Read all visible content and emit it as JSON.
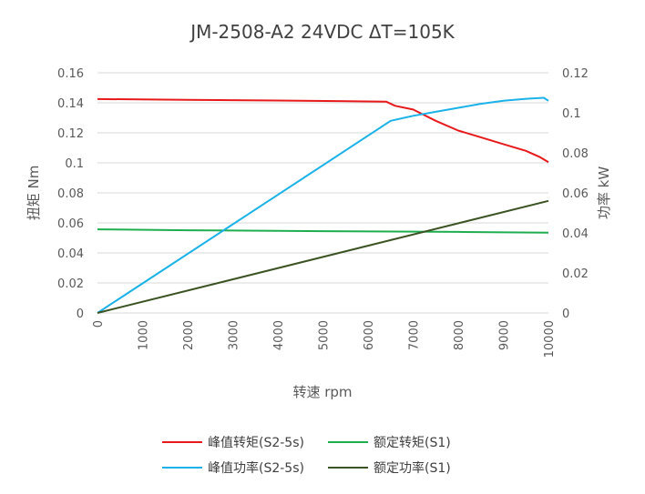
{
  "chart_data": {
    "type": "line",
    "title": "JM-2508-A2 24VDC ΔT=105K",
    "xlabel": "转速 rpm",
    "ylabel_left": "扭矩 Nm",
    "ylabel_right": "功率 kW",
    "xlim": [
      0,
      10000
    ],
    "ylim_left": [
      0,
      0.16
    ],
    "ylim_right": [
      0,
      0.12
    ],
    "x_ticks": [
      0,
      1000,
      2000,
      3000,
      4000,
      5000,
      6000,
      7000,
      8000,
      9000,
      10000
    ],
    "y_left_ticks": [
      "0",
      "0.02",
      "0.04",
      "0.06",
      "0.08",
      "0.1",
      "0.12",
      "0.14",
      "0.16"
    ],
    "y_right_ticks": [
      "0",
      "0.02",
      "0.04",
      "0.06",
      "0.08",
      "0.1",
      "0.12"
    ],
    "grid": true,
    "legend_position": "bottom",
    "series": [
      {
        "name": "峰值转矩(S2-5s)",
        "axis": "left",
        "color": "#e8191b",
        "points": [
          [
            0,
            0.1425
          ],
          [
            2000,
            0.142
          ],
          [
            4000,
            0.1415
          ],
          [
            6400,
            0.1408
          ],
          [
            6600,
            0.138
          ],
          [
            7000,
            0.1355
          ],
          [
            7500,
            0.128
          ],
          [
            8000,
            0.1215
          ],
          [
            8500,
            0.117
          ],
          [
            9000,
            0.1125
          ],
          [
            9500,
            0.108
          ],
          [
            9800,
            0.104
          ],
          [
            10000,
            0.1005
          ]
        ]
      },
      {
        "name": "额定转矩(S1)",
        "axis": "left",
        "color": "#1fae4f",
        "points": [
          [
            0,
            0.0557
          ],
          [
            2000,
            0.0551
          ],
          [
            5000,
            0.0545
          ],
          [
            8000,
            0.054
          ],
          [
            10000,
            0.0535
          ]
        ]
      },
      {
        "name": "峰值功率(S2-5s)",
        "axis": "right",
        "color": "#1ab2e8",
        "points": [
          [
            0,
            0
          ],
          [
            6500,
            0.096
          ],
          [
            7000,
            0.0985
          ],
          [
            7500,
            0.1005
          ],
          [
            8000,
            0.1025
          ],
          [
            8500,
            0.1045
          ],
          [
            9000,
            0.106
          ],
          [
            9500,
            0.107
          ],
          [
            9900,
            0.1075
          ],
          [
            10000,
            0.106
          ]
        ]
      },
      {
        "name": "额定功率(S1)",
        "axis": "right",
        "color": "#3b5323",
        "points": [
          [
            0,
            0
          ],
          [
            10000,
            0.056
          ]
        ]
      }
    ]
  }
}
